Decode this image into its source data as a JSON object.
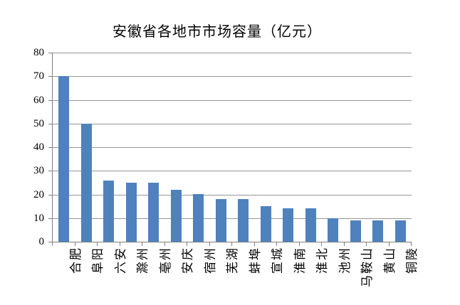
{
  "chart_data": {
    "type": "bar",
    "title": "安徽省各地市市场容量（亿元）",
    "categories": [
      "合肥",
      "阜阳",
      "六安",
      "滁州",
      "亳州",
      "安庆",
      "宿州",
      "芜湖",
      "蚌埠",
      "宣城",
      "淮南",
      "淮北",
      "池州",
      "马鞍山",
      "黄山",
      "铜陵"
    ],
    "values": [
      70,
      50,
      26,
      25,
      25,
      22,
      20,
      18,
      18,
      15,
      14,
      14,
      10,
      9,
      9,
      9
    ],
    "xlabel": "",
    "ylabel": "",
    "ylim": [
      0,
      80
    ],
    "yticks": [
      0,
      10,
      20,
      30,
      40,
      50,
      60,
      70,
      80
    ],
    "grid": true,
    "legend": "none",
    "colors": {
      "bar": "#4F81BD",
      "gridline": "#969696",
      "axis": "#808080",
      "text": "#000000",
      "background": "#FFFFFF"
    }
  }
}
